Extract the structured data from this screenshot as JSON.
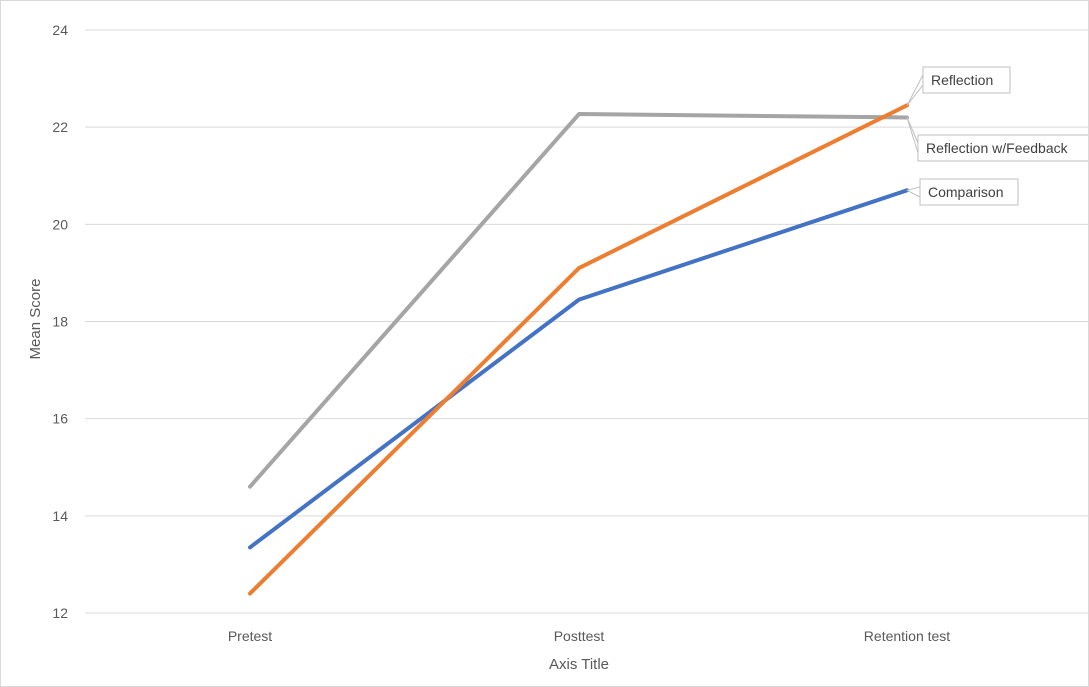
{
  "chart_data": {
    "type": "line",
    "title": "",
    "xlabel": "Axis Title",
    "ylabel": "Mean Score",
    "categories": [
      "Pretest",
      "Posttest",
      "Retention test"
    ],
    "ylim": [
      12,
      24
    ],
    "yticks": [
      12,
      14,
      16,
      18,
      20,
      22,
      24
    ],
    "grid": true,
    "legend": "none",
    "series": [
      {
        "name": "Comparison",
        "values": [
          13.35,
          18.45,
          20.7
        ],
        "color": "#4472C4"
      },
      {
        "name": "Reflection",
        "values": [
          12.4,
          19.1,
          22.45
        ],
        "color": "#ED7D31"
      },
      {
        "name": "Reflection w/Feedback",
        "values": [
          14.6,
          22.27,
          22.2
        ],
        "color": "#A5A5A5"
      }
    ]
  }
}
